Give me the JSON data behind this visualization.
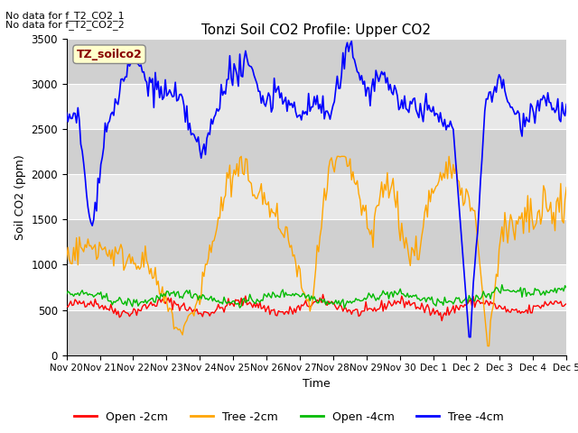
{
  "title": "Tonzi Soil CO2 Profile: Upper CO2",
  "ylabel": "Soil CO2 (ppm)",
  "xlabel": "Time",
  "annotations": [
    "No data for f_T2_CO2_1",
    "No data for f_T2_CO2_2"
  ],
  "legend_label": "TZ_soilco2",
  "legend_entries": [
    "Open -2cm",
    "Tree -2cm",
    "Open -4cm",
    "Tree -4cm"
  ],
  "legend_colors": [
    "#ff0000",
    "#ffa500",
    "#00bb00",
    "#0000ff"
  ],
  "ylim": [
    0,
    3500
  ],
  "yticks": [
    0,
    500,
    1000,
    1500,
    2000,
    2500,
    3000,
    3500
  ],
  "background_color": "#ffffff",
  "plot_bg_color": "#e8e8e8",
  "band_color": "#d0d0d0",
  "n_points": 350
}
